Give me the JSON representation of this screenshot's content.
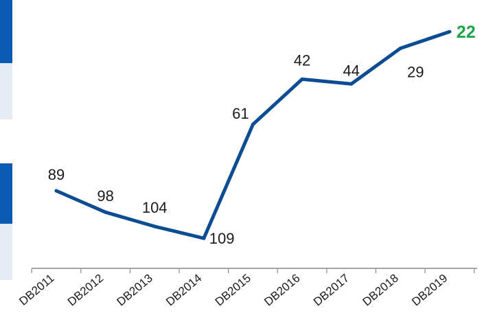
{
  "chart_data": {
    "type": "line",
    "title": "",
    "xlabel": "",
    "ylabel": "",
    "categories": [
      "DB2011",
      "DB2012",
      "DB2013",
      "DB2014",
      "DB2015",
      "DB2016",
      "DB2017",
      "DB2018",
      "DB2019"
    ],
    "series": [
      {
        "values": [
          89,
          98,
          104,
          109,
          61,
          42,
          44,
          29,
          22
        ]
      }
    ],
    "y_axis_reversed": true,
    "ylim": [
      115,
      15
    ],
    "grid": false,
    "legend": "none",
    "colors": {
      "line": "#0b4c92",
      "highlight_label": "#1aa34a",
      "axis": "#8a8a8a",
      "side_dark": "#0b5bb5",
      "side_light": "#e6eaf3"
    }
  }
}
